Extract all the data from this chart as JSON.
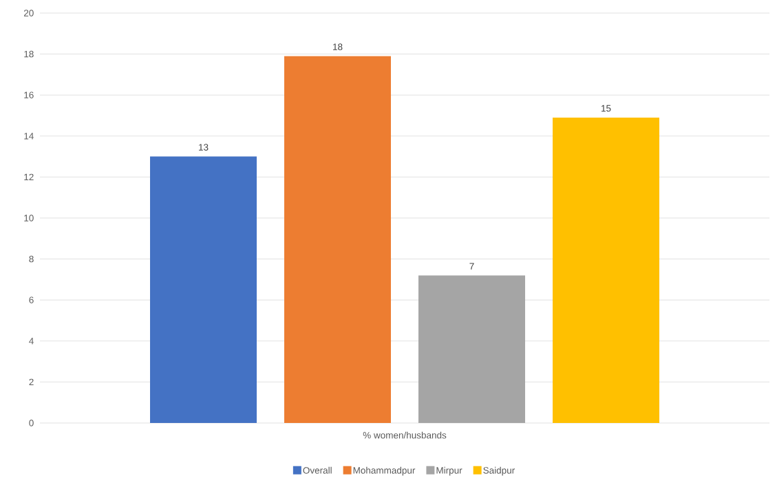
{
  "chart_data": {
    "type": "bar",
    "categories": [
      "% women/husbands"
    ],
    "series": [
      {
        "name": "Overall",
        "color": "#4472c4",
        "values": [
          13
        ],
        "value_labels": [
          "13"
        ]
      },
      {
        "name": "Mohammadpur",
        "color": "#ed7d31",
        "values": [
          17.9
        ],
        "value_labels": [
          "18"
        ]
      },
      {
        "name": "Mirpur",
        "color": "#a5a5a5",
        "values": [
          7.2
        ],
        "value_labels": [
          "7"
        ]
      },
      {
        "name": "Saidpur",
        "color": "#ffc000",
        "values": [
          14.9
        ],
        "value_labels": [
          "15"
        ]
      }
    ],
    "ylim": [
      0,
      20
    ],
    "yticks": [
      0,
      2,
      4,
      6,
      8,
      10,
      12,
      14,
      16,
      18,
      20
    ],
    "grid": "y",
    "legend": "bottom"
  }
}
